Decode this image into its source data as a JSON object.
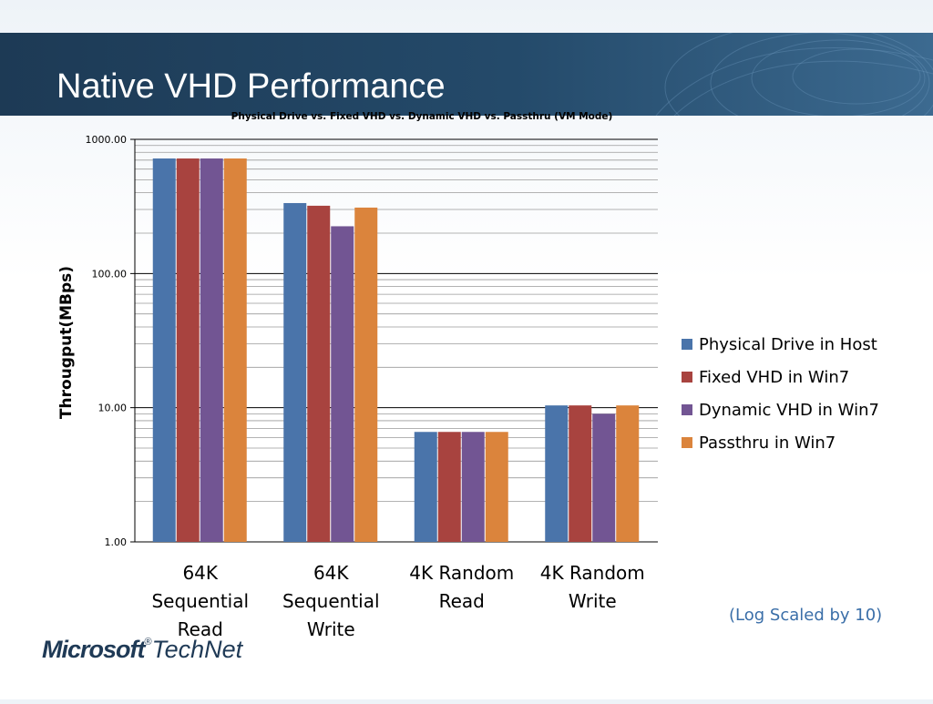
{
  "slide": {
    "title": "Native VHD Performance",
    "note": "(Log Scaled by 10)",
    "logo": {
      "brand": "Microsoft",
      "product": "TechNet",
      "mark": "®"
    }
  },
  "chart_data": {
    "type": "bar",
    "title": "Physical Drive vs. Fixed VHD vs. Dynamic VHD vs. Passthru (VM Mode)",
    "ylabel": "Througput(MBps)",
    "xlabel": "",
    "yscale": "log",
    "ylim": [
      1,
      1000
    ],
    "yticks": [
      "1.00",
      "10.00",
      "100.00",
      "1000.00"
    ],
    "grid": true,
    "legend_position": "right",
    "categories": [
      [
        "64K",
        "Sequential",
        "Read"
      ],
      [
        "64K",
        "Sequential",
        "Write"
      ],
      [
        "4K Random",
        "Read"
      ],
      [
        "4K Random",
        "Write"
      ]
    ],
    "series": [
      {
        "name": "Physical Drive in Host",
        "color": "#4a74aa",
        "values": [
          720,
          335,
          6.6,
          10.4
        ]
      },
      {
        "name": "Fixed VHD in Win7",
        "color": "#a8433f",
        "values": [
          720,
          320,
          6.6,
          10.4
        ]
      },
      {
        "name": "Dynamic VHD in Win7",
        "color": "#725593",
        "values": [
          720,
          225,
          6.6,
          9.0
        ]
      },
      {
        "name": "Passthru in Win7",
        "color": "#db843c",
        "values": [
          720,
          310,
          6.6,
          10.4
        ]
      }
    ]
  }
}
